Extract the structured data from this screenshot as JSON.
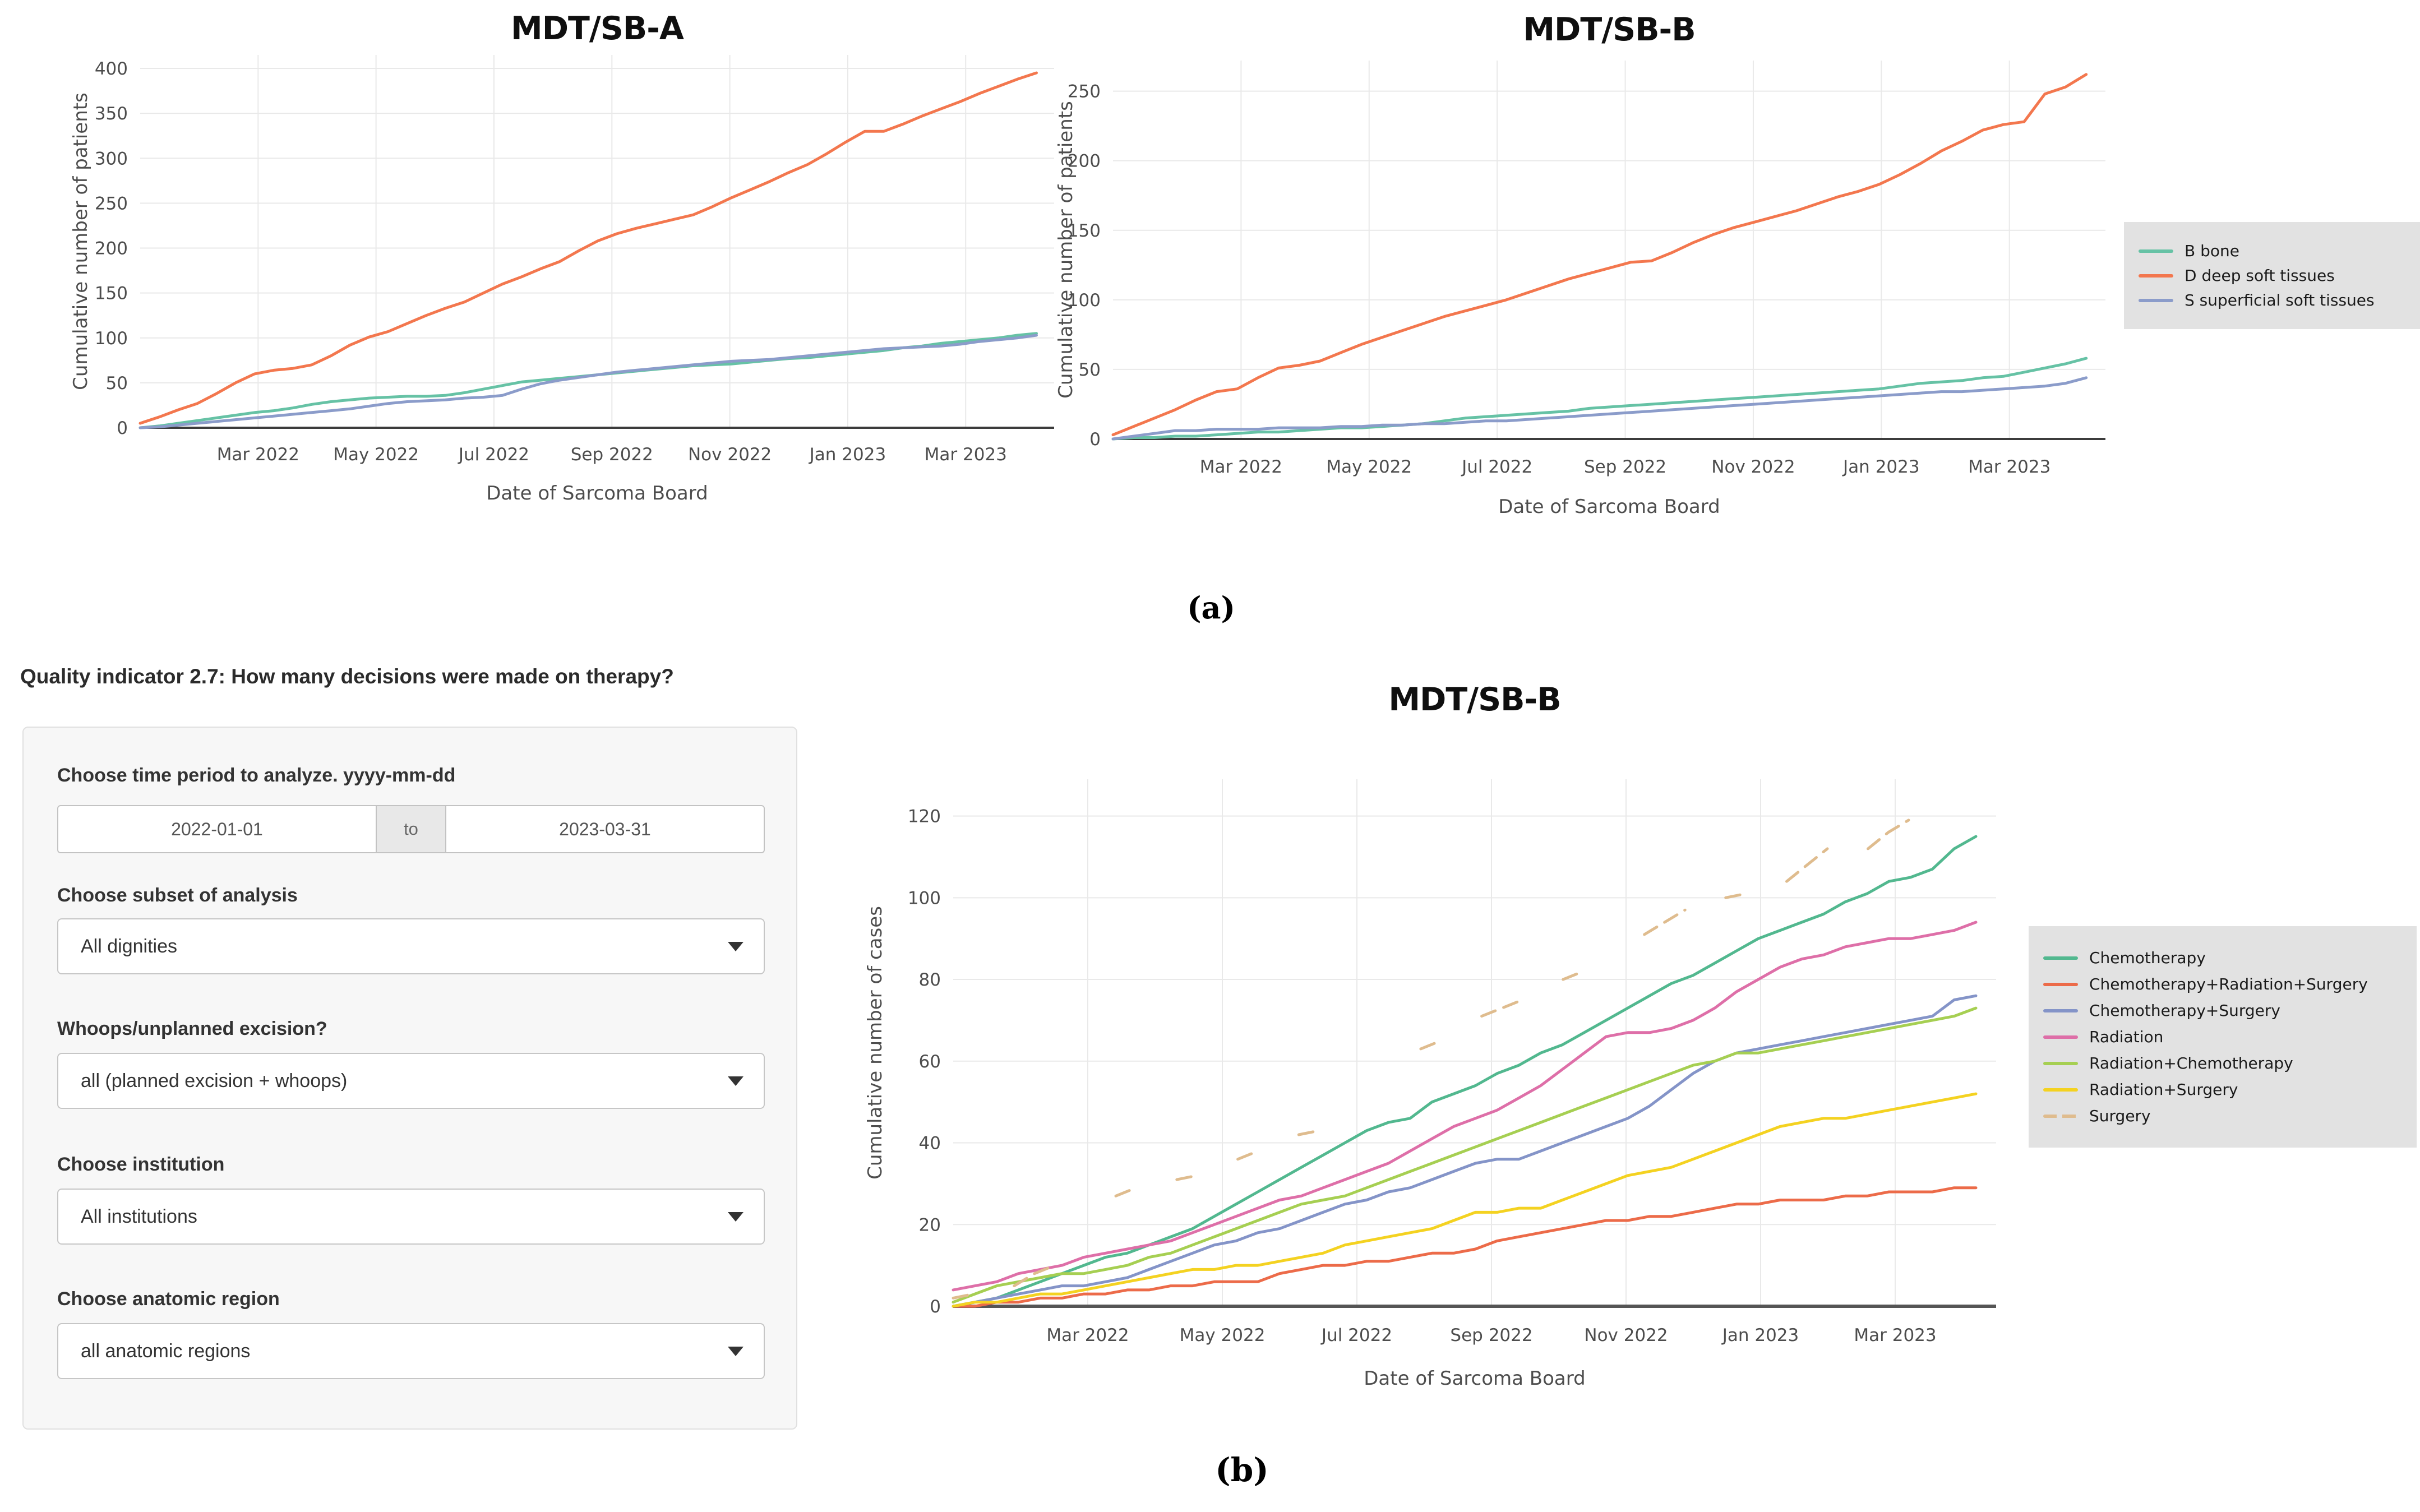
{
  "figure": {
    "panel_a_label": "(a)",
    "panel_b_label": "(b)"
  },
  "form": {
    "title": "Quality indicator 2.7: How many decisions were made on therapy?",
    "time_period": {
      "label": "Choose time period to analyze. yyyy-mm-dd",
      "start_value": "2022-01-01",
      "separator": "to",
      "end_value": "2023-03-31"
    },
    "subset": {
      "label": "Choose subset of analysis",
      "value": "All dignities"
    },
    "whoops": {
      "label": "Whoops/unplanned excision?",
      "value": "all (planned excision + whoops)"
    },
    "institution": {
      "label": "Choose institution",
      "value": "All institutions"
    },
    "anatomic": {
      "label": "Choose anatomic region",
      "value": "all anatomic regions"
    }
  },
  "colors": {
    "legend_background": "#e2e2e2",
    "grid": "#e9e9e9",
    "axis_line": "#3c3c3c",
    "tick_text": "#4d4d4d"
  },
  "chart_data": [
    {
      "id": "mdt-sb-a",
      "type": "line",
      "title": "MDT/SB-A",
      "xlabel": "Date of Sarcoma Board",
      "ylabel": "Cumulative number of patients",
      "x_unit": "months since 2022-01-01",
      "x_range": [
        0,
        15.5
      ],
      "x_ticks": [
        {
          "pos": 2,
          "label": "Mar 2022"
        },
        {
          "pos": 4,
          "label": "May 2022"
        },
        {
          "pos": 6,
          "label": "Jul 2022"
        },
        {
          "pos": 8,
          "label": "Sep 2022"
        },
        {
          "pos": 10,
          "label": "Nov 2022"
        },
        {
          "pos": 12,
          "label": "Jan 2023"
        },
        {
          "pos": 14,
          "label": "Mar 2023"
        }
      ],
      "ylim": [
        0,
        415
      ],
      "y_ticks": [
        0,
        50,
        100,
        150,
        200,
        250,
        300,
        350,
        400
      ],
      "grid": true,
      "legend_position": "shared-right",
      "series": [
        {
          "name": "B bone",
          "color": "#66c2a5",
          "x_end": 15.2,
          "values": [
            0,
            2,
            5,
            8,
            11,
            14,
            17,
            19,
            22,
            26,
            29,
            31,
            33,
            34,
            35,
            35,
            36,
            39,
            43,
            47,
            51,
            53,
            55,
            57,
            59,
            61,
            63,
            65,
            67,
            69,
            70,
            71,
            73,
            75,
            77,
            78,
            80,
            82,
            84,
            86,
            89,
            91,
            94,
            96,
            98,
            100,
            103,
            105
          ]
        },
        {
          "name": "D deep soft tissues",
          "color": "#f3774e",
          "x_end": 15.2,
          "values": [
            5,
            12,
            20,
            27,
            38,
            50,
            60,
            64,
            66,
            70,
            80,
            92,
            101,
            107,
            116,
            125,
            133,
            140,
            150,
            160,
            168,
            177,
            185,
            197,
            208,
            216,
            222,
            227,
            232,
            237,
            246,
            256,
            265,
            274,
            284,
            293,
            305,
            318,
            330,
            330,
            338,
            347,
            355,
            363,
            372,
            380,
            388,
            395
          ]
        },
        {
          "name": "S superficial soft tissues",
          "color": "#8b9cca",
          "x_end": 15.2,
          "values": [
            0,
            1,
            3,
            5,
            7,
            9,
            11,
            13,
            15,
            17,
            19,
            21,
            24,
            27,
            29,
            30,
            31,
            33,
            34,
            36,
            43,
            49,
            53,
            56,
            59,
            62,
            64,
            66,
            68,
            70,
            72,
            74,
            75,
            76,
            78,
            80,
            82,
            84,
            86,
            88,
            89,
            90,
            91,
            93,
            96,
            98,
            100,
            103
          ]
        }
      ]
    },
    {
      "id": "mdt-sb-b-patients",
      "type": "line",
      "title": "MDT/SB-B",
      "xlabel": "Date of Sarcoma Board",
      "ylabel": "Cumulative number of patients",
      "x_unit": "months since 2022-01-01",
      "x_range": [
        0,
        15.5
      ],
      "x_ticks": [
        {
          "pos": 2,
          "label": "Mar 2022"
        },
        {
          "pos": 4,
          "label": "May 2022"
        },
        {
          "pos": 6,
          "label": "Jul 2022"
        },
        {
          "pos": 8,
          "label": "Sep 2022"
        },
        {
          "pos": 10,
          "label": "Nov 2022"
        },
        {
          "pos": 12,
          "label": "Jan 2023"
        },
        {
          "pos": 14,
          "label": "Mar 2023"
        }
      ],
      "ylim": [
        0,
        272
      ],
      "y_ticks": [
        0,
        50,
        100,
        150,
        200,
        250
      ],
      "grid": true,
      "legend_position": "right",
      "series": [
        {
          "name": "B bone",
          "color": "#66c2a5",
          "x_end": 15.2,
          "values": [
            0,
            1,
            1,
            2,
            2,
            3,
            4,
            5,
            5,
            6,
            7,
            8,
            8,
            9,
            10,
            11,
            13,
            15,
            16,
            17,
            18,
            19,
            20,
            22,
            23,
            24,
            25,
            26,
            27,
            28,
            29,
            30,
            31,
            32,
            33,
            34,
            35,
            36,
            38,
            40,
            41,
            42,
            44,
            45,
            48,
            51,
            54,
            58
          ]
        },
        {
          "name": "D deep soft tissues",
          "color": "#f3774e",
          "x_end": 15.2,
          "values": [
            3,
            9,
            15,
            21,
            28,
            34,
            36,
            44,
            51,
            53,
            56,
            62,
            68,
            73,
            78,
            83,
            88,
            92,
            96,
            100,
            105,
            110,
            115,
            119,
            123,
            127,
            128,
            134,
            141,
            147,
            152,
            156,
            160,
            164,
            169,
            174,
            178,
            183,
            190,
            198,
            207,
            214,
            222,
            226,
            228,
            248,
            253,
            262
          ]
        },
        {
          "name": "S superficial soft tissues",
          "color": "#8b9cca",
          "x_end": 15.2,
          "values": [
            0,
            2,
            4,
            6,
            6,
            7,
            7,
            7,
            8,
            8,
            8,
            9,
            9,
            10,
            10,
            11,
            11,
            12,
            13,
            13,
            14,
            15,
            16,
            17,
            18,
            19,
            20,
            21,
            22,
            23,
            24,
            25,
            26,
            27,
            28,
            29,
            30,
            31,
            32,
            33,
            34,
            34,
            35,
            36,
            37,
            38,
            40,
            44
          ]
        }
      ]
    },
    {
      "id": "mdt-sb-b-cases",
      "type": "line",
      "title": "MDT/SB-B",
      "xlabel": "Date of Sarcoma Board",
      "ylabel": "Cumulative number of cases",
      "x_unit": "months since 2022-01-01",
      "x_range": [
        0,
        15.5
      ],
      "x_ticks": [
        {
          "pos": 2,
          "label": "Mar 2022"
        },
        {
          "pos": 4,
          "label": "May 2022"
        },
        {
          "pos": 6,
          "label": "Jul 2022"
        },
        {
          "pos": 8,
          "label": "Sep 2022"
        },
        {
          "pos": 10,
          "label": "Nov 2022"
        },
        {
          "pos": 12,
          "label": "Jan 2023"
        },
        {
          "pos": 14,
          "label": "Mar 2023"
        }
      ],
      "ylim": [
        0,
        129
      ],
      "y_ticks": [
        0,
        20,
        40,
        60,
        80,
        100,
        120
      ],
      "grid": true,
      "legend_position": "right",
      "series": [
        {
          "name": "Chemotherapy",
          "color": "#52b88f",
          "x_end": 15.2,
          "values": [
            0,
            1,
            2,
            4,
            6,
            8,
            10,
            12,
            13,
            15,
            17,
            19,
            22,
            25,
            28,
            31,
            34,
            37,
            40,
            43,
            45,
            46,
            50,
            52,
            54,
            57,
            59,
            62,
            64,
            67,
            70,
            73,
            76,
            79,
            81,
            84,
            87,
            90,
            92,
            94,
            96,
            99,
            101,
            104,
            105,
            107,
            112,
            115
          ]
        },
        {
          "name": "Chemotherapy+Radiation+Surgery",
          "color": "#ec6b49",
          "x_end": 15.2,
          "values": [
            0,
            0,
            1,
            1,
            2,
            2,
            3,
            3,
            4,
            4,
            5,
            5,
            6,
            6,
            6,
            8,
            9,
            10,
            10,
            11,
            11,
            12,
            13,
            13,
            14,
            16,
            17,
            18,
            19,
            20,
            21,
            21,
            22,
            22,
            23,
            24,
            25,
            25,
            26,
            26,
            26,
            27,
            27,
            28,
            28,
            28,
            29,
            29
          ]
        },
        {
          "name": "Chemotherapy+Surgery",
          "color": "#8494c8",
          "x_end": 15.2,
          "values": [
            0,
            1,
            2,
            3,
            4,
            5,
            5,
            6,
            7,
            9,
            11,
            13,
            15,
            16,
            18,
            19,
            21,
            23,
            25,
            26,
            28,
            29,
            31,
            33,
            35,
            36,
            36,
            38,
            40,
            42,
            44,
            46,
            49,
            53,
            57,
            60,
            62,
            63,
            64,
            65,
            66,
            67,
            68,
            69,
            70,
            71,
            75,
            76
          ]
        },
        {
          "name": "Radiation",
          "color": "#de6fa8",
          "x_end": 15.2,
          "values": [
            4,
            5,
            6,
            8,
            9,
            10,
            12,
            13,
            14,
            15,
            16,
            18,
            20,
            22,
            24,
            26,
            27,
            29,
            31,
            33,
            35,
            38,
            41,
            44,
            46,
            48,
            51,
            54,
            58,
            62,
            66,
            67,
            67,
            68,
            70,
            73,
            77,
            80,
            83,
            85,
            86,
            88,
            89,
            90,
            90,
            91,
            92,
            94
          ]
        },
        {
          "name": "Radiation+Chemotherapy",
          "color": "#a6cf52",
          "x_end": 15.2,
          "values": [
            1,
            3,
            5,
            6,
            7,
            8,
            8,
            9,
            10,
            12,
            13,
            15,
            17,
            19,
            21,
            23,
            25,
            26,
            27,
            29,
            31,
            33,
            35,
            37,
            39,
            41,
            43,
            45,
            47,
            49,
            51,
            53,
            55,
            57,
            59,
            60,
            62,
            62,
            63,
            64,
            65,
            66,
            67,
            68,
            69,
            70,
            71,
            73
          ]
        },
        {
          "name": "Radiation+Surgery",
          "color": "#f4d221",
          "x_end": 15.2,
          "values": [
            0,
            1,
            1,
            2,
            3,
            3,
            4,
            5,
            6,
            7,
            8,
            9,
            9,
            10,
            10,
            11,
            12,
            13,
            15,
            16,
            17,
            18,
            19,
            21,
            23,
            23,
            24,
            24,
            26,
            28,
            30,
            32,
            33,
            34,
            36,
            38,
            40,
            42,
            44,
            45,
            46,
            46,
            47,
            48,
            49,
            50,
            51,
            52
          ]
        },
        {
          "name": "Surgery",
          "color": "#dfbc8e",
          "dash": true,
          "x_end": 14.2,
          "values": [
            2,
            3,
            null,
            5,
            8,
            10,
            null,
            null,
            27,
            29,
            null,
            31,
            32,
            null,
            36,
            38,
            null,
            42,
            43,
            null,
            null,
            55,
            null,
            63,
            65,
            null,
            71,
            73,
            75,
            null,
            80,
            82,
            null,
            null,
            91,
            94,
            97,
            null,
            100,
            101,
            null,
            104,
            108,
            112,
            null,
            112,
            116,
            119
          ]
        }
      ]
    }
  ]
}
